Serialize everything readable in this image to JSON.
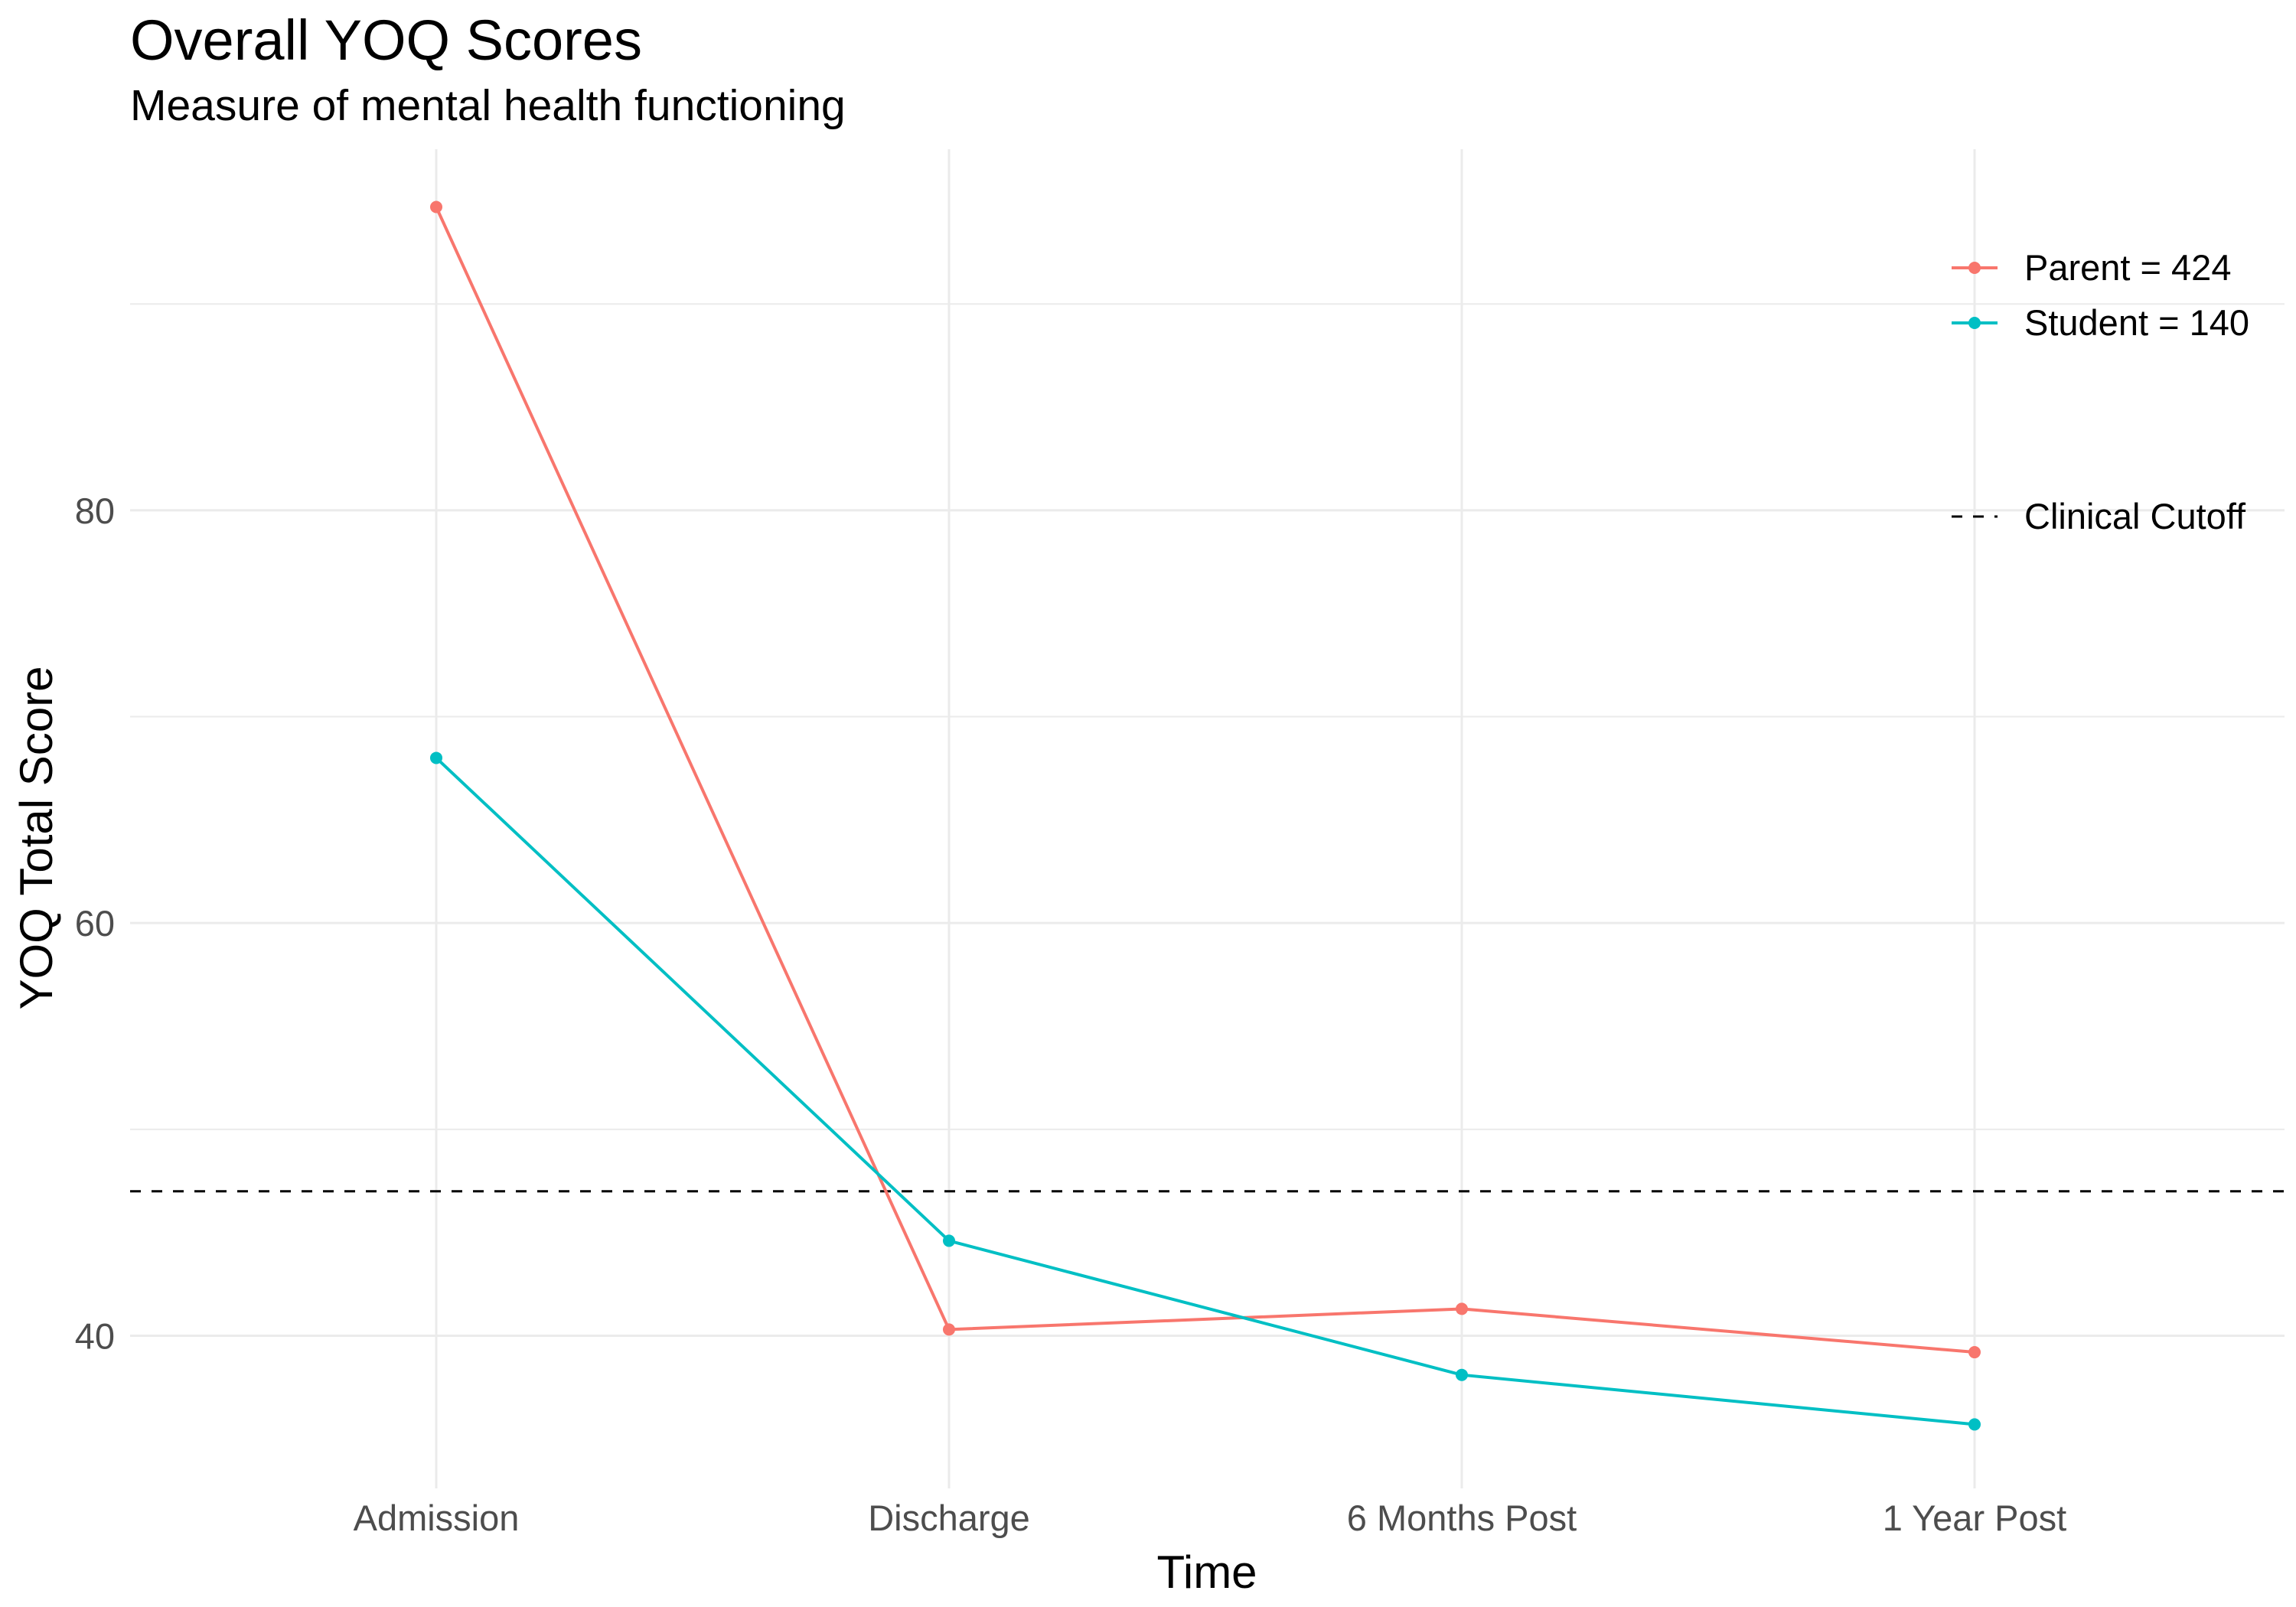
{
  "chart_data": {
    "type": "line",
    "title": "Overall YOQ Scores",
    "subtitle": "Measure of mental health functioning",
    "xlabel": "Time",
    "ylabel": "YOQ Total Score",
    "categories": [
      "Admission",
      "Discharge",
      "6 Months Post",
      "1 Year Post"
    ],
    "ylim": [
      32.6,
      97.5
    ],
    "yticks": [
      40,
      60,
      80
    ],
    "grid": true,
    "legend_position": "top-right",
    "series": [
      {
        "name": "Parent = 424",
        "color": "#F8766D",
        "values": [
          94.7,
          40.3,
          41.3,
          39.2
        ]
      },
      {
        "name": "Student = 140",
        "color": "#00BFC4",
        "values": [
          68.0,
          44.6,
          38.1,
          35.7
        ]
      }
    ],
    "reference_lines": [
      {
        "name": "Clinical Cutoff",
        "y": 47,
        "style": "dashed",
        "color": "#000000"
      }
    ]
  }
}
